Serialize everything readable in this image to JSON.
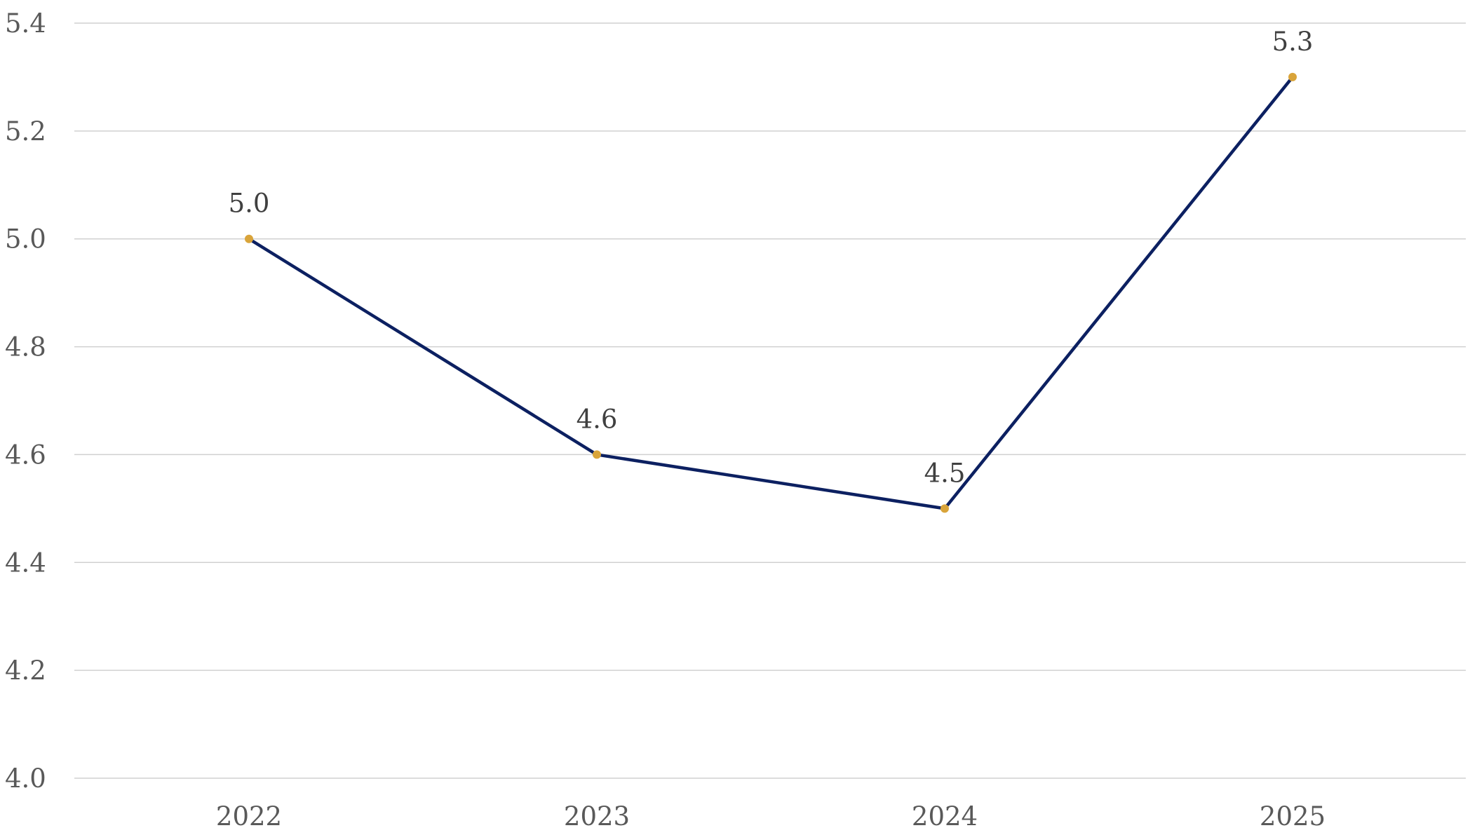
{
  "chart_data": {
    "type": "line",
    "categories": [
      "2022",
      "2023",
      "2024",
      "2025"
    ],
    "series": [
      {
        "values": [
          5.0,
          4.6,
          4.5,
          5.3
        ],
        "data_labels": [
          "5.0",
          "4.6",
          "4.5",
          "5.3"
        ]
      }
    ],
    "ylim": [
      4.0,
      5.4
    ],
    "y_ticks": [
      "4.0",
      "4.2",
      "4.4",
      "4.6",
      "4.8",
      "5.0",
      "5.2",
      "5.4"
    ],
    "title": "",
    "xlabel": "",
    "ylabel": "",
    "grid": "horizontal",
    "legend": "none",
    "colors": {
      "line": "#0c2061",
      "marker": "#d9a43a",
      "grid": "#d0d0d0",
      "tick_text": "#595959",
      "label_text": "#404040"
    }
  }
}
